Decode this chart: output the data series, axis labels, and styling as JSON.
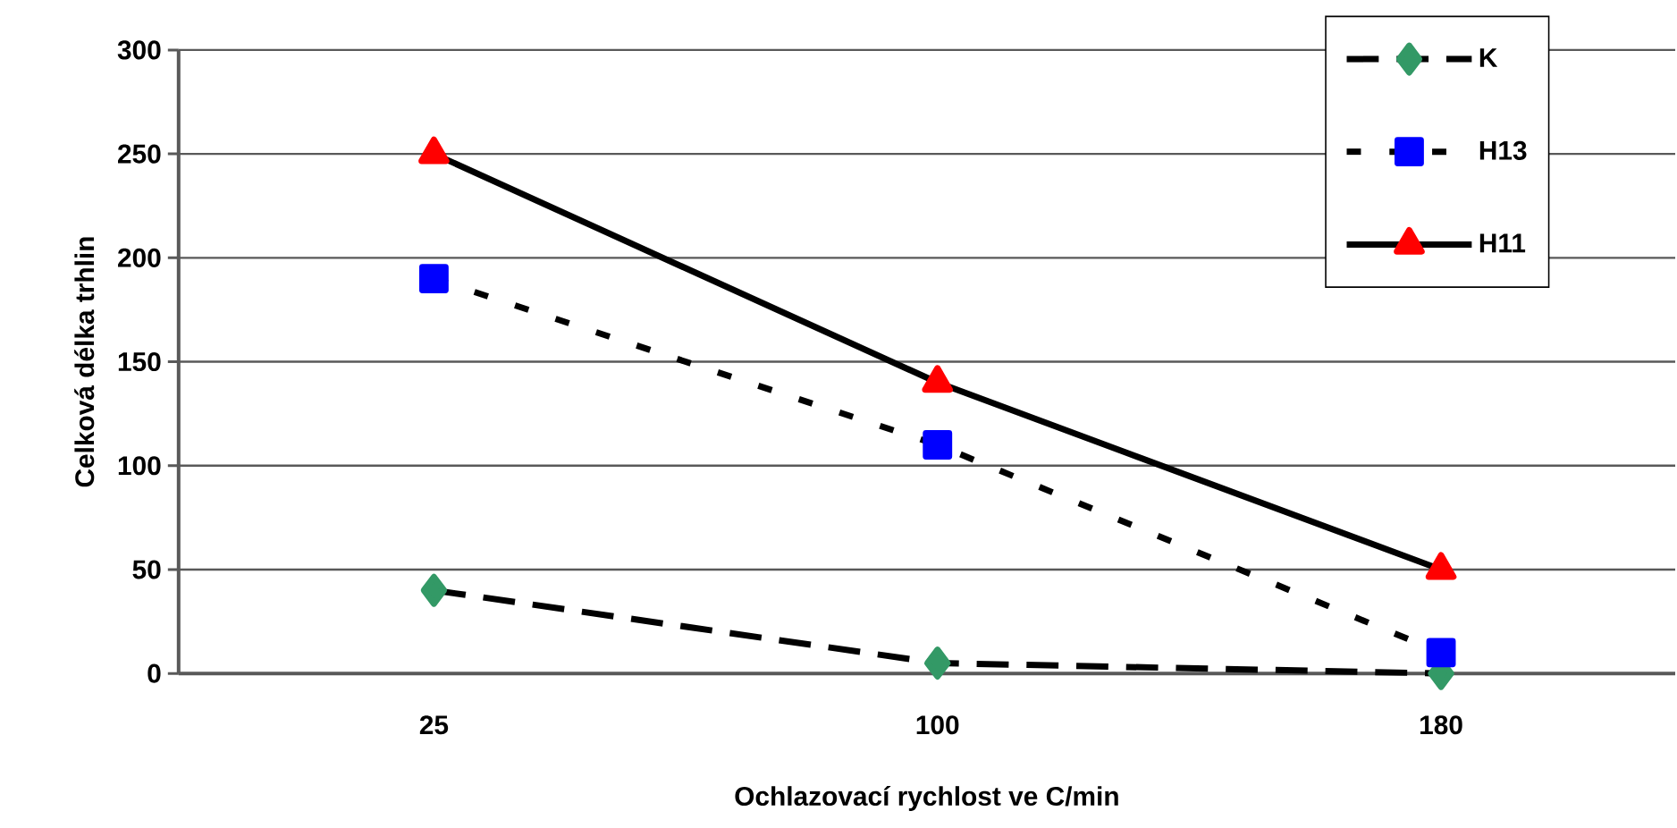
{
  "chart_data": {
    "type": "line",
    "xlabel": "Ochlazovací rychlost ve C/min",
    "ylabel": "Celková délka trhlin",
    "categories": [
      "25",
      "100",
      "180"
    ],
    "series": [
      {
        "name": "K",
        "color": "#339966",
        "values": [
          40,
          5,
          0
        ],
        "marker": "diamond",
        "line_style": "dashed"
      },
      {
        "name": "H13",
        "color": "#0000ff",
        "values": [
          190,
          110,
          10
        ],
        "marker": "square",
        "line_style": "dotted"
      },
      {
        "name": "H11",
        "color": "#ff0000",
        "values": [
          250,
          140,
          50
        ],
        "marker": "triangle",
        "line_style": "solid"
      }
    ],
    "ylim": [
      0,
      300
    ],
    "yticks": [
      0,
      50,
      100,
      150,
      200,
      250,
      300
    ],
    "grid": "y",
    "legend": "top right"
  }
}
